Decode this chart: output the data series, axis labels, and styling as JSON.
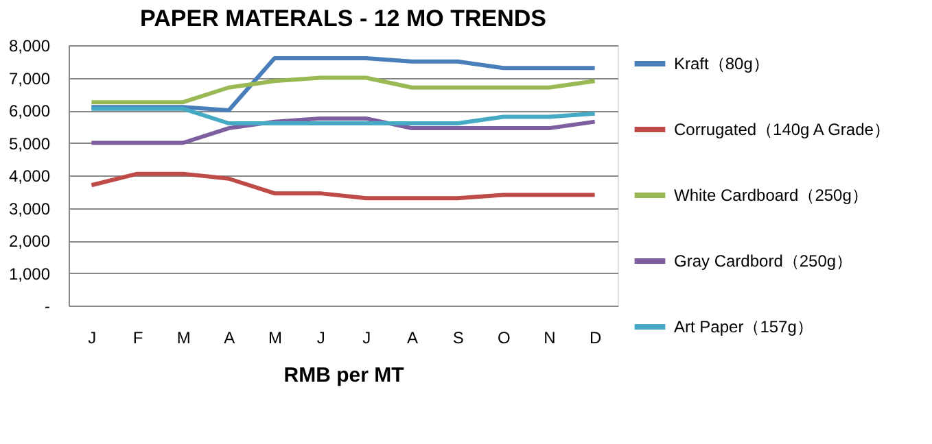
{
  "chart_data": {
    "type": "line",
    "title": "PAPER MATERALS - 12 MO TRENDS",
    "xlabel": "RMB per MT",
    "categories": [
      "J",
      "F",
      "M",
      "A",
      "M",
      "J",
      "J",
      "A",
      "S",
      "O",
      "N",
      "D"
    ],
    "series": [
      {
        "name": "Kraft（80g）",
        "color": "#4a7ebb",
        "values": [
          6100,
          6100,
          6100,
          6000,
          7600,
          7600,
          7600,
          7500,
          7500,
          7300,
          7300,
          7300
        ]
      },
      {
        "name": "Corrugated（140g A Grade）",
        "color": "#be4b48",
        "values": [
          3700,
          4050,
          4050,
          3900,
          3450,
          3450,
          3300,
          3300,
          3300,
          3400,
          3400,
          3400
        ]
      },
      {
        "name": "White Cardboard（250g）",
        "color": "#98b954",
        "values": [
          6250,
          6250,
          6250,
          6700,
          6900,
          7000,
          7000,
          6700,
          6700,
          6700,
          6700,
          6900
        ]
      },
      {
        "name": "Gray Cardbord（250g）",
        "color": "#7d5fa0",
        "values": [
          5000,
          5000,
          5000,
          5450,
          5650,
          5750,
          5750,
          5450,
          5450,
          5450,
          5450,
          5650
        ]
      },
      {
        "name": "Art Paper（157g）",
        "color": "#46aac5",
        "values": [
          6050,
          6050,
          6050,
          5600,
          5600,
          5600,
          5600,
          5600,
          5600,
          5800,
          5800,
          5900
        ]
      }
    ],
    "ylim": [
      0,
      8000
    ],
    "yticks": [
      {
        "value": 0,
        "label": "-"
      },
      {
        "value": 1000,
        "label": "1,000"
      },
      {
        "value": 2000,
        "label": "2,000"
      },
      {
        "value": 3000,
        "label": "3,000"
      },
      {
        "value": 4000,
        "label": "4,000"
      },
      {
        "value": 5000,
        "label": "5,000"
      },
      {
        "value": 6000,
        "label": "6,000"
      },
      {
        "value": 7000,
        "label": "7,000"
      },
      {
        "value": 8000,
        "label": "8,000"
      }
    ],
    "grid": "y",
    "legend": "right",
    "marker": "none",
    "line_style": "solid"
  }
}
